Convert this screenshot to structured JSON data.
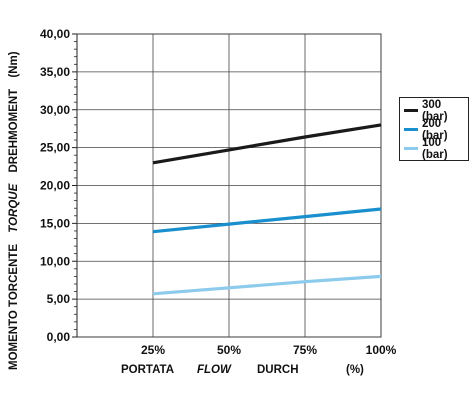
{
  "chart_data": {
    "type": "line",
    "categories": [
      "25%",
      "50%",
      "75%",
      "100%"
    ],
    "x": [
      25,
      50,
      75,
      100
    ],
    "xlim": [
      0,
      100
    ],
    "ylim": [
      0,
      40
    ],
    "y_ticks": [
      "0,00",
      "5,00",
      "10,00",
      "15,00",
      "20,00",
      "25,00",
      "30,00",
      "35,00",
      "40,00"
    ],
    "y_minor_per_major": 5,
    "grid": true,
    "legend_position": "right",
    "series": [
      {
        "name": "300 (bar)",
        "color": "#1a1a1a",
        "values": [
          23.0,
          24.7,
          26.4,
          28.0
        ]
      },
      {
        "name": "200 (bar)",
        "color": "#1a8fce",
        "values": [
          13.9,
          14.9,
          15.9,
          16.9
        ]
      },
      {
        "name": "100 (bar)",
        "color": "#8ccbec",
        "values": [
          5.7,
          6.5,
          7.3,
          8.0
        ]
      }
    ],
    "ylabel": {
      "part1": "MOMENTO TORCENTE",
      "part2": "TORQUE",
      "part3": "DREHMOMENT",
      "unit": "(Nm)"
    },
    "xlabel": {
      "part1": "PORTATA",
      "part2": "FLOW",
      "part3": "DURCH",
      "unit": "(%)"
    }
  }
}
